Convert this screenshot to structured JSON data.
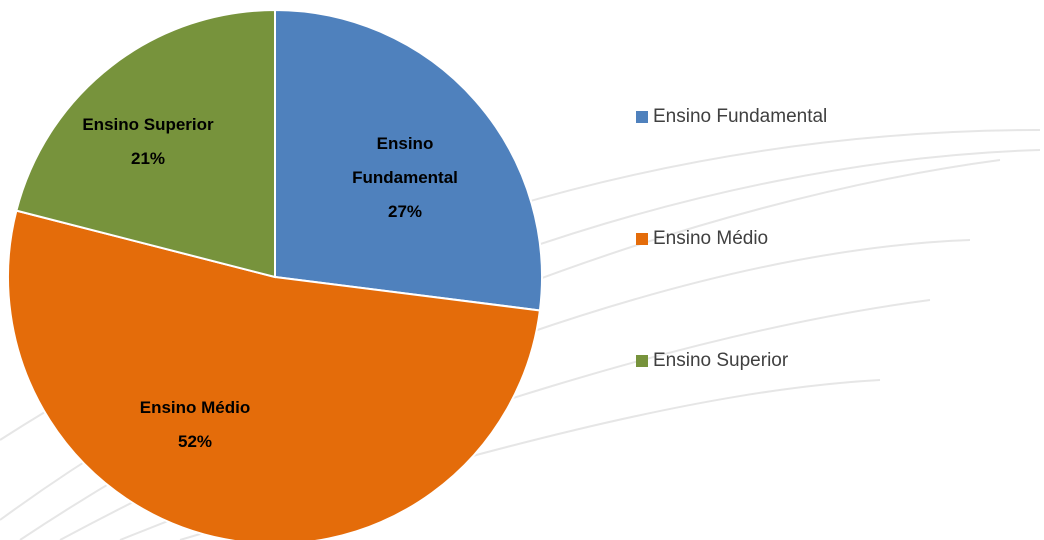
{
  "chart_data": {
    "type": "pie",
    "categories": [
      "Ensino Fundamental",
      "Ensino Médio",
      "Ensino Superior"
    ],
    "values": [
      27,
      52,
      21
    ],
    "value_labels": [
      "27%",
      "52%",
      "21%"
    ],
    "colors": [
      "#4f81bd",
      "#e46c0a",
      "#77933c"
    ],
    "legend": "right"
  }
}
